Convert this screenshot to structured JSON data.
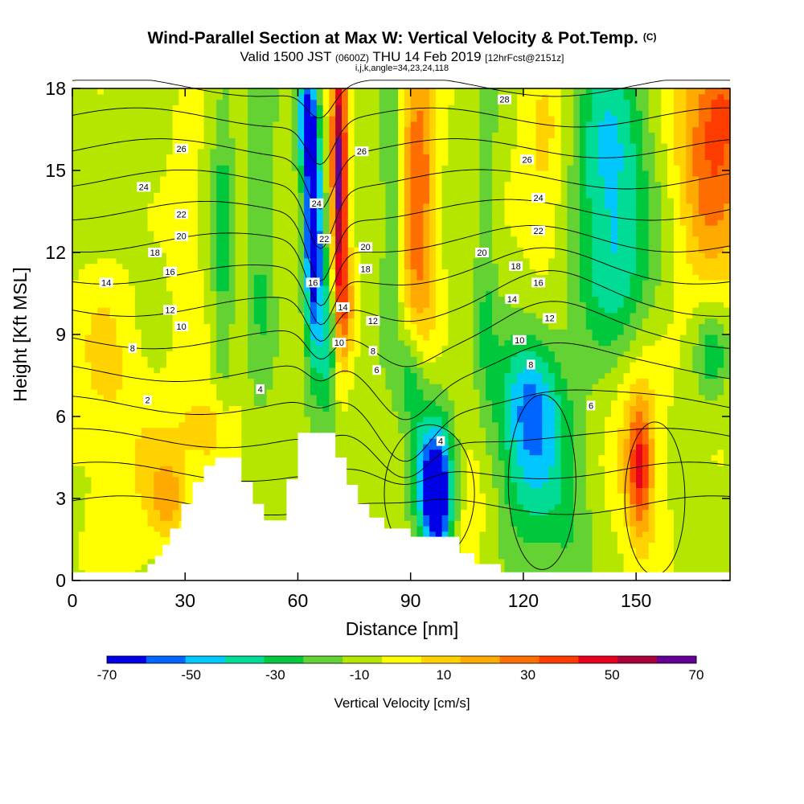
{
  "header": {
    "title": "Wind-Parallel Section at Max W: Vertical Velocity & Pot.Temp.",
    "title_mark": "(C)",
    "valid_label": "Valid 1500 JST",
    "valid_utc": "(0600Z)",
    "valid_date": "THU 14 Feb 2019",
    "forecast": "[12hrFcst@2151z]",
    "indices": "i,j,k,angle=34,23,24,118"
  },
  "chart_data": {
    "type": "heatmap",
    "xlabel": "Distance [nm]",
    "ylabel": "Height [Kft MSL]",
    "xlim": [
      0,
      175
    ],
    "ylim": [
      0,
      18
    ],
    "x_ticks": [
      0,
      30,
      60,
      90,
      120,
      150
    ],
    "y_ticks": [
      0,
      3,
      6,
      9,
      12,
      15,
      18
    ],
    "colorbar": {
      "label": "Vertical Velocity [cm/s]",
      "tick_values": [
        -70,
        -50,
        -30,
        -10,
        10,
        30,
        50,
        70
      ],
      "bounds": [
        -70,
        -60,
        -50,
        -40,
        -30,
        -20,
        -10,
        0,
        10,
        20,
        30,
        40,
        50,
        60,
        70
      ],
      "colors": [
        "#0000e6",
        "#0064ff",
        "#00c8ff",
        "#00dc96",
        "#00c83c",
        "#64d232",
        "#b4e600",
        "#ffff00",
        "#ffd200",
        "#ffaa00",
        "#ff6e00",
        "#ff3c00",
        "#e6001e",
        "#aa003c",
        "#640096"
      ]
    },
    "terrain": [
      [
        0,
        0.3
      ],
      [
        20,
        0.3
      ],
      [
        20,
        0.6
      ],
      [
        22,
        0.6
      ],
      [
        22,
        0.9
      ],
      [
        24,
        0.9
      ],
      [
        24,
        1.3
      ],
      [
        26,
        1.3
      ],
      [
        26,
        1.9
      ],
      [
        29,
        1.9
      ],
      [
        29,
        2.8
      ],
      [
        32,
        2.8
      ],
      [
        32,
        3.6
      ],
      [
        35,
        3.6
      ],
      [
        35,
        4.2
      ],
      [
        38,
        4.2
      ],
      [
        38,
        4.5
      ],
      [
        45,
        4.5
      ],
      [
        45,
        3.6
      ],
      [
        48,
        3.6
      ],
      [
        48,
        2.8
      ],
      [
        51,
        2.8
      ],
      [
        51,
        2.2
      ],
      [
        57,
        2.2
      ],
      [
        57,
        3.7
      ],
      [
        60,
        3.7
      ],
      [
        60,
        5.4
      ],
      [
        70,
        5.4
      ],
      [
        70,
        4.5
      ],
      [
        73,
        4.5
      ],
      [
        73,
        3.5
      ],
      [
        76,
        3.5
      ],
      [
        76,
        2.8
      ],
      [
        79,
        2.8
      ],
      [
        79,
        2.3
      ],
      [
        83,
        2.3
      ],
      [
        83,
        1.9
      ],
      [
        90,
        1.9
      ],
      [
        90,
        1.6
      ],
      [
        103,
        1.6
      ],
      [
        103,
        1.0
      ],
      [
        107,
        1.0
      ],
      [
        107,
        0.6
      ],
      [
        114,
        0.6
      ],
      [
        114,
        0.3
      ],
      [
        175,
        0.3
      ]
    ],
    "velocity_features": [
      {
        "x": 64,
        "y": 13,
        "sx": 1.6,
        "sy": 3.2,
        "value": -75
      },
      {
        "x": 62,
        "y": 17,
        "sx": 1.8,
        "sy": 1.4,
        "value": -50
      },
      {
        "x": 68,
        "y": 9,
        "sx": 2.2,
        "sy": 2.0,
        "value": -40
      },
      {
        "x": 71,
        "y": 14.5,
        "sx": 1.5,
        "sy": 4.0,
        "value": 80
      },
      {
        "x": 73,
        "y": 10,
        "sx": 2.0,
        "sy": 1.5,
        "value": 25
      },
      {
        "x": 92,
        "y": 14,
        "sx": 3.5,
        "sy": 4.0,
        "value": 45
      },
      {
        "x": 97,
        "y": 2.8,
        "sx": 2.8,
        "sy": 1.4,
        "value": -70
      },
      {
        "x": 95,
        "y": 4.5,
        "sx": 4.0,
        "sy": 1.8,
        "value": -35
      },
      {
        "x": 90,
        "y": 7.5,
        "sx": 2.5,
        "sy": 1.2,
        "value": -25
      },
      {
        "x": 122,
        "y": 4.8,
        "sx": 8.0,
        "sy": 2.6,
        "value": -38
      },
      {
        "x": 122,
        "y": 7,
        "sx": 5.0,
        "sy": 1.5,
        "value": -22
      },
      {
        "x": 126,
        "y": 15,
        "sx": 5.0,
        "sy": 3.0,
        "value": 18
      },
      {
        "x": 143,
        "y": 15.5,
        "sx": 7.0,
        "sy": 3.0,
        "value": -38
      },
      {
        "x": 145,
        "y": 11,
        "sx": 8.0,
        "sy": 2.0,
        "value": -22
      },
      {
        "x": 170,
        "y": 15.5,
        "sx": 7.0,
        "sy": 3.5,
        "value": 40
      },
      {
        "x": 175,
        "y": 17.5,
        "sx": 5.0,
        "sy": 1.5,
        "value": 20
      },
      {
        "x": 151,
        "y": 4.2,
        "sx": 2.0,
        "sy": 1.5,
        "value": 40
      },
      {
        "x": 151,
        "y": 4.5,
        "sx": 5.0,
        "sy": 3.0,
        "value": 22
      },
      {
        "x": 170,
        "y": 8.3,
        "sx": 3.0,
        "sy": 1.2,
        "value": -25
      },
      {
        "x": 40,
        "y": 12,
        "sx": 2.0,
        "sy": 5.0,
        "value": -20
      },
      {
        "x": 50,
        "y": 13,
        "sx": 2.5,
        "sy": 5.0,
        "value": -18
      },
      {
        "x": 85,
        "y": 14,
        "sx": 2.0,
        "sy": 4.0,
        "value": -22
      },
      {
        "x": 110,
        "y": 12,
        "sx": 2.0,
        "sy": 5.0,
        "value": -15
      },
      {
        "x": 30,
        "y": 13,
        "sx": 3.0,
        "sy": 5.0,
        "value": 12
      },
      {
        "x": 20,
        "y": 4,
        "sx": 12.0,
        "sy": 3.0,
        "value": 12
      },
      {
        "x": 8,
        "y": 8.5,
        "sx": 6.0,
        "sy": 2.5,
        "value": 12
      },
      {
        "x": 38,
        "y": 5.5,
        "sx": 4.0,
        "sy": 1.0,
        "value": 22
      },
      {
        "x": 25,
        "y": 3.0,
        "sx": 3.0,
        "sy": 1.0,
        "value": 20
      },
      {
        "x": 108,
        "y": 3,
        "sx": 5.0,
        "sy": 2.5,
        "value": 14
      },
      {
        "x": 132,
        "y": 1.5,
        "sx": 4.0,
        "sy": 1.5,
        "value": -10
      }
    ],
    "contour_levels": [
      2,
      4,
      6,
      8,
      10,
      12,
      14,
      16,
      18,
      20,
      22,
      24,
      26,
      28
    ],
    "contour_labels": [
      {
        "text": "2",
        "x": 20,
        "y": 6.6
      },
      {
        "text": "4",
        "x": 50,
        "y": 7.0
      },
      {
        "text": "4",
        "x": 98,
        "y": 5.1
      },
      {
        "text": "6",
        "x": 81,
        "y": 7.7
      },
      {
        "text": "6",
        "x": 138,
        "y": 6.4
      },
      {
        "text": "8",
        "x": 16,
        "y": 8.5
      },
      {
        "text": "8",
        "x": 80,
        "y": 8.4
      },
      {
        "text": "8",
        "x": 122,
        "y": 7.9
      },
      {
        "text": "10",
        "x": 29,
        "y": 9.3
      },
      {
        "text": "10",
        "x": 71,
        "y": 8.7
      },
      {
        "text": "10",
        "x": 119,
        "y": 8.8
      },
      {
        "text": "12",
        "x": 26,
        "y": 9.9
      },
      {
        "text": "12",
        "x": 80,
        "y": 9.5
      },
      {
        "text": "12",
        "x": 127,
        "y": 9.6
      },
      {
        "text": "14",
        "x": 9,
        "y": 10.9
      },
      {
        "text": "14",
        "x": 72,
        "y": 10.0
      },
      {
        "text": "14",
        "x": 117,
        "y": 10.3
      },
      {
        "text": "16",
        "x": 26,
        "y": 11.3
      },
      {
        "text": "16",
        "x": 64,
        "y": 10.9
      },
      {
        "text": "16",
        "x": 124,
        "y": 10.9
      },
      {
        "text": "18",
        "x": 22,
        "y": 12.0
      },
      {
        "text": "18",
        "x": 78,
        "y": 11.4
      },
      {
        "text": "18",
        "x": 118,
        "y": 11.5
      },
      {
        "text": "20",
        "x": 29,
        "y": 12.6
      },
      {
        "text": "20",
        "x": 78,
        "y": 12.2
      },
      {
        "text": "20",
        "x": 109,
        "y": 12.0
      },
      {
        "text": "22",
        "x": 29,
        "y": 13.4
      },
      {
        "text": "22",
        "x": 67,
        "y": 12.5
      },
      {
        "text": "22",
        "x": 124,
        "y": 12.8
      },
      {
        "text": "24",
        "x": 19,
        "y": 14.4
      },
      {
        "text": "24",
        "x": 65,
        "y": 13.8
      },
      {
        "text": "24",
        "x": 124,
        "y": 14.0
      },
      {
        "text": "26",
        "x": 29,
        "y": 15.8
      },
      {
        "text": "26",
        "x": 77,
        "y": 15.7
      },
      {
        "text": "26",
        "x": 121,
        "y": 15.4
      },
      {
        "text": "28",
        "x": 115,
        "y": 17.6
      }
    ]
  }
}
